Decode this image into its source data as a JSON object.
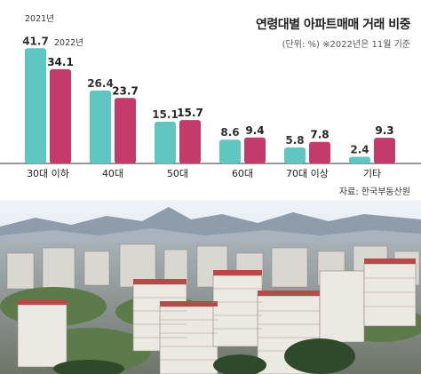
{
  "chart_data": {
    "type": "bar",
    "title": "연령대별 아파트매매 거래 비중",
    "subtitle": "(단위: %)  ※2022년은 11월 기준",
    "categories": [
      "30대 이하",
      "40대",
      "50대",
      "60대",
      "70대 이상",
      "기타"
    ],
    "series": [
      {
        "name": "2021년",
        "values": [
          41.7,
          26.4,
          15.1,
          8.6,
          5.8,
          2.4
        ],
        "color": "#5fc6c1"
      },
      {
        "name": "2022년",
        "values": [
          34.1,
          23.7,
          15.7,
          9.4,
          7.8,
          9.3
        ],
        "color": "#c33b6a"
      }
    ],
    "value_labels": {
      "2021년": [
        "41.7",
        "26.4",
        "15.1",
        "8.6",
        "5.8",
        "2.4"
      ],
      "2022년": [
        "34.1",
        "23.7",
        "15.7",
        "9.4",
        "7.8",
        "9.3"
      ]
    },
    "source": "자료: 한국부동산원",
    "ylim": [
      0,
      45
    ],
    "grid": false,
    "legend": "labels above first category bars"
  }
}
